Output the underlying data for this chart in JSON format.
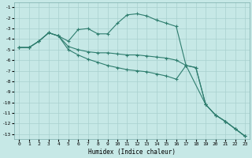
{
  "xlabel": "Humidex (Indice chaleur)",
  "bg_color": "#c6e8e6",
  "grid_color": "#a8d0ce",
  "line_color": "#2e7d6e",
  "xlim": [
    -0.5,
    23.5
  ],
  "ylim": [
    -13.5,
    -0.5
  ],
  "xticks": [
    0,
    1,
    2,
    3,
    4,
    5,
    6,
    7,
    8,
    9,
    10,
    11,
    12,
    13,
    14,
    15,
    16,
    17,
    18,
    19,
    20,
    21,
    22,
    23
  ],
  "yticks": [
    -1,
    -2,
    -3,
    -4,
    -5,
    -6,
    -7,
    -8,
    -9,
    -10,
    -11,
    -12,
    -13
  ],
  "line1_x": [
    0,
    1,
    2,
    3,
    4,
    5,
    6,
    7,
    8,
    9,
    10,
    11,
    12,
    13,
    14,
    15,
    16,
    17,
    19,
    20,
    21,
    22,
    23
  ],
  "line1_y": [
    -4.8,
    -4.8,
    -4.2,
    -3.4,
    -3.7,
    -4.2,
    -3.1,
    -3.0,
    -3.5,
    -3.5,
    -2.5,
    -1.7,
    -1.6,
    -1.8,
    -2.2,
    -2.5,
    -2.8,
    -6.5,
    -10.2,
    -11.2,
    -11.8,
    -12.5,
    -13.2
  ],
  "line2_x": [
    0,
    1,
    2,
    3,
    4,
    5,
    6,
    7,
    8,
    9,
    10,
    11,
    12,
    13,
    14,
    15,
    16,
    17,
    18,
    19,
    20,
    21,
    22,
    23
  ],
  "line2_y": [
    -4.8,
    -4.8,
    -4.2,
    -3.4,
    -3.7,
    -4.7,
    -5.0,
    -5.2,
    -5.3,
    -5.3,
    -5.4,
    -5.5,
    -5.5,
    -5.6,
    -5.7,
    -5.8,
    -6.0,
    -6.5,
    -6.7,
    -10.2,
    -11.2,
    -11.8,
    -12.5,
    -13.2
  ],
  "line3_x": [
    0,
    1,
    2,
    3,
    4,
    5,
    6,
    7,
    8,
    9,
    10,
    11,
    12,
    13,
    14,
    15,
    16,
    17,
    18,
    19,
    20,
    21,
    22,
    23
  ],
  "line3_y": [
    -4.8,
    -4.8,
    -4.2,
    -3.4,
    -3.7,
    -5.0,
    -5.5,
    -5.9,
    -6.2,
    -6.5,
    -6.7,
    -6.9,
    -7.0,
    -7.1,
    -7.3,
    -7.5,
    -7.8,
    -6.5,
    -6.7,
    -10.2,
    -11.2,
    -11.8,
    -12.5,
    -13.2
  ]
}
